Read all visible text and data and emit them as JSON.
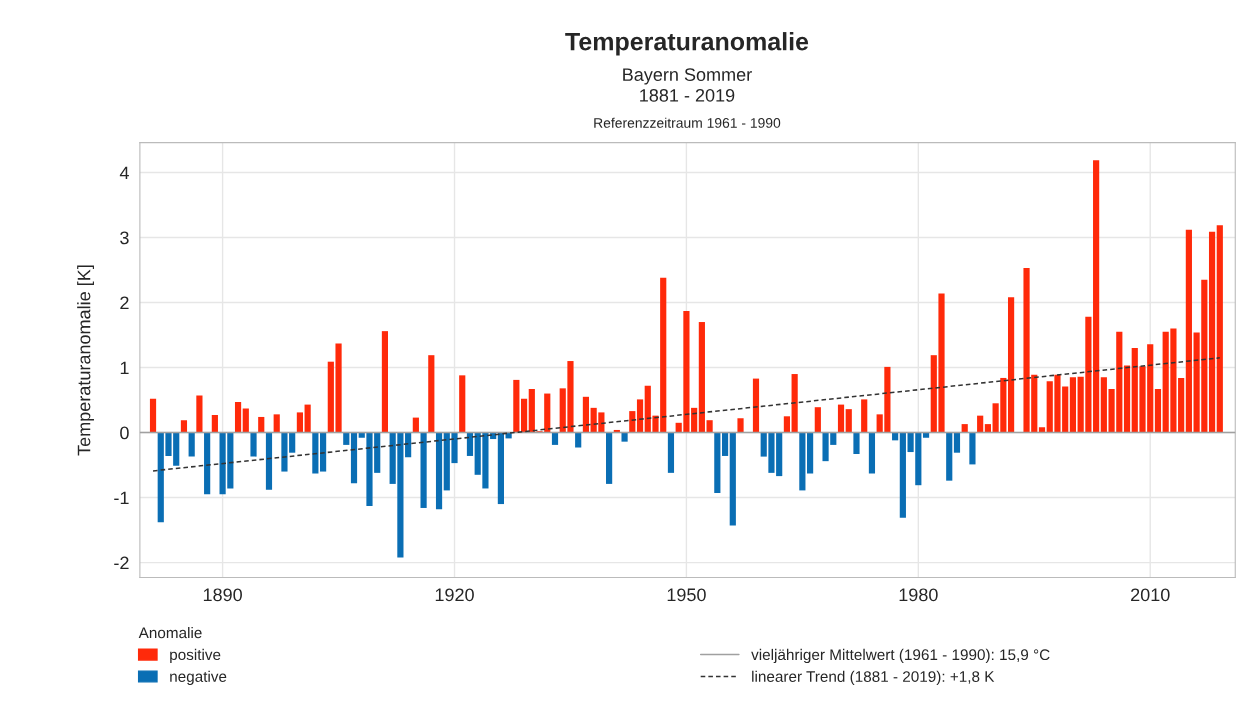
{
  "chart_data": {
    "type": "bar",
    "title": "Temperaturanomalie",
    "subtitle": "Bayern Sommer\n1881 - 2019",
    "annotations": [
      "Referenzzeitraum 1961 - 1990"
    ],
    "ylabel": "Temperaturanomalie [K]",
    "legend_title": "Anomalie",
    "x": [
      1881,
      1882,
      1883,
      1884,
      1885,
      1886,
      1887,
      1888,
      1889,
      1890,
      1891,
      1892,
      1893,
      1894,
      1895,
      1896,
      1897,
      1898,
      1899,
      1900,
      1901,
      1902,
      1903,
      1904,
      1905,
      1906,
      1907,
      1908,
      1909,
      1910,
      1911,
      1912,
      1913,
      1914,
      1915,
      1916,
      1917,
      1918,
      1919,
      1920,
      1921,
      1922,
      1923,
      1924,
      1925,
      1926,
      1927,
      1928,
      1929,
      1930,
      1931,
      1932,
      1933,
      1934,
      1935,
      1936,
      1937,
      1938,
      1939,
      1940,
      1941,
      1942,
      1943,
      1944,
      1945,
      1946,
      1947,
      1948,
      1949,
      1950,
      1951,
      1952,
      1953,
      1954,
      1955,
      1956,
      1957,
      1958,
      1959,
      1960,
      1961,
      1962,
      1963,
      1964,
      1965,
      1966,
      1967,
      1968,
      1969,
      1970,
      1971,
      1972,
      1973,
      1974,
      1975,
      1976,
      1977,
      1978,
      1979,
      1980,
      1981,
      1982,
      1983,
      1984,
      1985,
      1986,
      1987,
      1988,
      1989,
      1990,
      1991,
      1992,
      1993,
      1994,
      1995,
      1996,
      1997,
      1998,
      1999,
      2000,
      2001,
      2002,
      2003,
      2004,
      2005,
      2006,
      2007,
      2008,
      2009,
      2010,
      2011,
      2012,
      2013,
      2014,
      2015,
      2016,
      2017,
      2018,
      2019
    ],
    "series": [
      {
        "name": "positive",
        "color": "#ff2a0a",
        "values": [
          0.52,
          null,
          null,
          null,
          0.19,
          null,
          0.57,
          null,
          0.27,
          null,
          null,
          0.47,
          0.37,
          null,
          0.24,
          null,
          0.28,
          null,
          null,
          0.31,
          0.43,
          null,
          null,
          1.09,
          1.37,
          null,
          null,
          null,
          null,
          null,
          1.56,
          null,
          null,
          null,
          0.23,
          null,
          1.19,
          null,
          null,
          null,
          0.88,
          null,
          null,
          null,
          null,
          null,
          null,
          0.81,
          0.52,
          0.67,
          0.02,
          0.6,
          null,
          0.68,
          1.1,
          null,
          0.55,
          0.38,
          0.31,
          null,
          0.04,
          null,
          0.33,
          0.51,
          0.72,
          0.26,
          2.38,
          null,
          0.15,
          1.87,
          0.38,
          1.7,
          0.19,
          null,
          null,
          null,
          0.22,
          null,
          0.83,
          null,
          null,
          null,
          0.25,
          0.9,
          null,
          null,
          0.39,
          null,
          null,
          0.43,
          0.36,
          null,
          0.51,
          null,
          0.28,
          1.01,
          null,
          null,
          null,
          null,
          null,
          1.19,
          2.14,
          null,
          null,
          0.13,
          null,
          0.26,
          0.13,
          0.45,
          0.84,
          2.08,
          null,
          2.53,
          0.89,
          0.08,
          0.79,
          0.89,
          0.71,
          0.85,
          0.86,
          1.78,
          4.19,
          0.85,
          0.67,
          1.55,
          1.03,
          1.3,
          1.02,
          1.36,
          0.67,
          1.55,
          1.6,
          0.84,
          3.12,
          1.54,
          2.35,
          3.09,
          3.19
        ]
      },
      {
        "name": "negative",
        "color": "#0a6eb4",
        "values": [
          null,
          -1.38,
          -0.36,
          -0.51,
          null,
          -0.37,
          null,
          -0.95,
          null,
          -0.95,
          -0.86,
          null,
          null,
          -0.37,
          null,
          -0.88,
          null,
          -0.6,
          -0.31,
          null,
          null,
          -0.63,
          -0.6,
          null,
          null,
          -0.19,
          -0.78,
          -0.08,
          -1.13,
          -0.62,
          null,
          -0.79,
          -1.92,
          -0.38,
          null,
          -1.16,
          null,
          -1.18,
          -0.89,
          -0.47,
          null,
          -0.36,
          -0.65,
          -0.86,
          -0.1,
          -1.1,
          -0.09,
          null,
          null,
          null,
          null,
          null,
          -0.19,
          null,
          null,
          -0.23,
          null,
          null,
          null,
          -0.79,
          null,
          -0.14,
          null,
          null,
          null,
          null,
          null,
          -0.62,
          null,
          null,
          null,
          null,
          null,
          -0.93,
          -0.36,
          -1.43,
          null,
          null,
          null,
          -0.37,
          -0.62,
          -0.67,
          null,
          null,
          -0.89,
          -0.63,
          null,
          -0.44,
          -0.19,
          null,
          null,
          -0.33,
          null,
          -0.63,
          null,
          null,
          -0.12,
          -1.31,
          -0.3,
          -0.81,
          -0.08,
          null,
          null,
          -0.74,
          -0.31,
          null,
          -0.49,
          null,
          null,
          null,
          null,
          null,
          null,
          null,
          null,
          null,
          null,
          null,
          null,
          null,
          null,
          null,
          null,
          null,
          null,
          null,
          null,
          null,
          null,
          null,
          null,
          null,
          null,
          null,
          null,
          null,
          null,
          null,
          null
        ]
      },
      {
        "type": "line",
        "name": "vieljähriger Mittelwert (1961 - 1990): 15,9 °C",
        "color": "#a0a0a0",
        "line_style": "solid",
        "x": [
          1879.3,
          2021
        ],
        "values": [
          0,
          0
        ]
      },
      {
        "type": "line",
        "name": "linearer Trend (1881 - 2019): +1,8 K",
        "color": "#333333",
        "line_style": "dashed",
        "x": [
          1881,
          2019
        ],
        "values": [
          -0.59,
          1.15
        ]
      }
    ],
    "xlim": [
      1879.3,
      2021
    ],
    "xticks": [
      1890,
      1920,
      1950,
      1980,
      2010
    ],
    "ylim": [
      -2.23,
      4.46
    ],
    "yticks": [
      -2,
      -1,
      0,
      1,
      2,
      3,
      4
    ],
    "grid": true,
    "legend": "bottom"
  }
}
